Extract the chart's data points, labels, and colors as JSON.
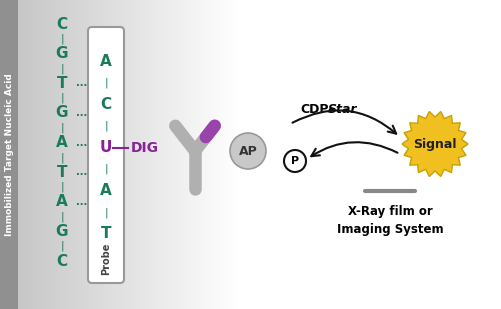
{
  "title_text": "Immobilized Target Nucleic Acid",
  "target_color": "#1a7a5e",
  "probe_color_main": "#1a7a5e",
  "probe_u_color": "#882299",
  "dig_color": "#882299",
  "dig_label": "DIG",
  "antibody_gray": "#b0b0b0",
  "antibody_purple": "#9944aa",
  "ap_color": "#c8c8c8",
  "ap_text": "AP",
  "signal_color": "#f0c020",
  "signal_text": "Signal",
  "xray_line1": "X-Ray film or",
  "xray_line2": "Imaging System",
  "arrow_color": "#111111",
  "p_text": "P",
  "line_color": "#888888",
  "bg_gray": "#a8a8a8",
  "bg_gray2": "#c8c8c8"
}
